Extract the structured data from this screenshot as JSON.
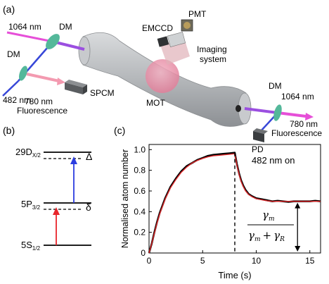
{
  "panels": {
    "a": {
      "label": "(a)",
      "labels": {
        "laser_1064_left": "1064 nm",
        "dm_top_left": "DM",
        "dm_left": "DM",
        "laser_482": "482 nm",
        "fluor_780_left_1": "780 nm",
        "fluor_780_left_2": "Fluorescence",
        "spcm": "SPCM",
        "mot": "MOT",
        "emccd": "EMCCD",
        "pmt": "PMT",
        "imaging_1": "Imaging",
        "imaging_2": "system",
        "dm_right": "DM",
        "laser_1064_right": "1064 nm",
        "fluor_780_right_1": "780 nm",
        "fluor_780_right_2": "Fluorescence",
        "pd": "PD"
      },
      "colors": {
        "beam_1064": "#e64fd8",
        "beam_482": "#3747d8",
        "beam_780": "#f39ab0",
        "dm": "#54b89a",
        "mot": "#e8879f",
        "cavity": "#b9bcbf"
      }
    },
    "b": {
      "label": "(b)",
      "levels": {
        "top": "29D",
        "top_sub": "X/2",
        "mid": "5P",
        "mid_sub": "3/2",
        "ground": "5S",
        "ground_sub": "1/2",
        "delta_big": "Δ",
        "delta_small": "δ"
      },
      "colors": {
        "upper_arrow": "#2b3de0",
        "lower_arrow": "#e8252b"
      }
    },
    "c": {
      "label": "(c)",
      "annotation": "482 nm on",
      "formula": {
        "numerator": "γ",
        "numerator_sub": "m",
        "denominator_a": "γ",
        "denominator_a_sub": "m",
        "plus": "+",
        "denominator_b": "γ",
        "denominator_b_sub": "R"
      }
    }
  },
  "chart_data": {
    "type": "line",
    "xlabel": "Time (s)",
    "ylabel": "Normalised  atom number",
    "xlim": [
      0,
      16
    ],
    "ylim": [
      0,
      1.05
    ],
    "xticks": [
      "0",
      "5",
      "10",
      "15"
    ],
    "yticks": [
      "0",
      "0.2",
      "0.4",
      "0.6",
      "0.8",
      "1.0"
    ],
    "switch_time": 8,
    "series": [
      {
        "color": "#000000",
        "x": [
          0,
          0.25,
          0.5,
          0.75,
          1,
          1.5,
          2,
          2.5,
          3,
          3.5,
          4,
          4.5,
          5,
          5.5,
          6,
          6.5,
          7,
          7.5,
          8,
          8.2,
          8.4,
          8.6,
          8.8,
          9,
          9.3,
          9.6,
          10,
          10.5,
          11,
          11.5,
          12,
          12.5,
          13,
          13.5,
          14,
          14.5,
          15,
          15.5,
          16
        ],
        "y": [
          0,
          0.09,
          0.2,
          0.3,
          0.39,
          0.53,
          0.64,
          0.72,
          0.79,
          0.84,
          0.87,
          0.9,
          0.92,
          0.94,
          0.95,
          0.955,
          0.96,
          0.965,
          0.97,
          0.86,
          0.77,
          0.7,
          0.65,
          0.61,
          0.57,
          0.55,
          0.53,
          0.52,
          0.51,
          0.5,
          0.505,
          0.5,
          0.495,
          0.5,
          0.5,
          0.5,
          0.5,
          0.505,
          0.5
        ]
      },
      {
        "color": "#e0282a",
        "x": [
          0,
          0.25,
          0.5,
          0.75,
          1,
          1.5,
          2,
          2.5,
          3,
          3.5,
          4,
          4.5,
          5,
          5.5,
          6,
          6.5,
          7,
          7.5,
          8,
          8.2,
          8.4,
          8.6,
          8.8,
          9,
          9.3,
          9.6,
          10,
          10.5,
          11,
          11.5,
          12,
          12.5,
          13,
          13.5,
          14,
          14.5,
          15,
          15.5,
          16
        ],
        "y": [
          0,
          0.09,
          0.19,
          0.29,
          0.38,
          0.52,
          0.63,
          0.71,
          0.78,
          0.83,
          0.87,
          0.895,
          0.915,
          0.93,
          0.94,
          0.945,
          0.95,
          0.955,
          0.96,
          0.85,
          0.76,
          0.69,
          0.64,
          0.6,
          0.565,
          0.545,
          0.525,
          0.515,
          0.505,
          0.5,
          0.5,
          0.5,
          0.5,
          0.5,
          0.5,
          0.5,
          0.5,
          0.5,
          0.5
        ]
      }
    ]
  }
}
